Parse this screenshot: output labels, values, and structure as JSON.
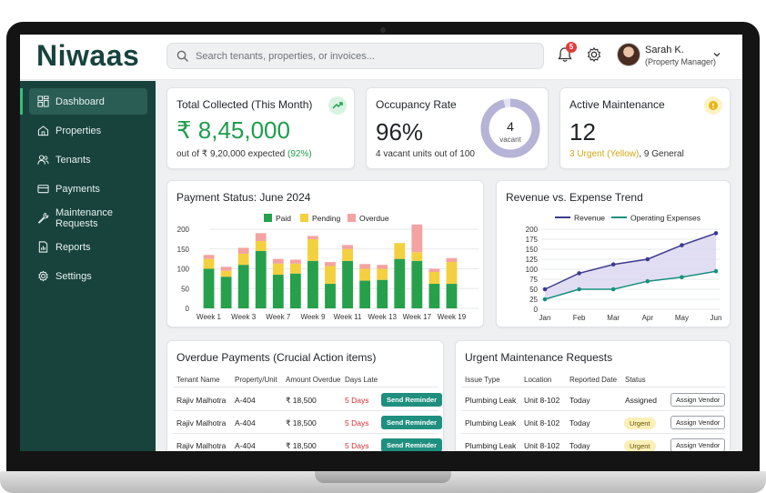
{
  "app": {
    "logo": "Niwaas",
    "search_placeholder": "Search tenants, properties, or invoices...",
    "notification_count": "5",
    "user_name": "Sarah K.",
    "user_role": "(Property Manager)"
  },
  "sidebar": {
    "items": [
      {
        "label": "Dashboard",
        "icon": "dashboard-icon",
        "active": true
      },
      {
        "label": "Properties",
        "icon": "home-icon"
      },
      {
        "label": "Tenants",
        "icon": "users-icon"
      },
      {
        "label": "Payments",
        "icon": "credit-card-icon"
      },
      {
        "label": "Maintenance Requests",
        "icon": "wrench-icon"
      },
      {
        "label": "Reports",
        "icon": "report-icon"
      },
      {
        "label": "Settings",
        "icon": "gear-icon"
      }
    ]
  },
  "kpis": {
    "collected": {
      "title": "Total Collected (This Month)",
      "value": "₹ 8,45,000",
      "sub_prefix": "out of ₹ 9,20,000 expected ",
      "sub_pct": "(92%)"
    },
    "occupancy": {
      "title": "Occupancy Rate",
      "value": "96%",
      "sub": "4 vacant units out of 100",
      "ring_number": "4",
      "ring_label": "vacant",
      "ring_fraction": 0.96
    },
    "maintenance": {
      "title": "Active Maintenance",
      "value": "12",
      "sub_urgent": "3 Urgent (Yellow)",
      "sub_rest": ", 9 General"
    }
  },
  "colors": {
    "paid": "#27a04c",
    "pending": "#f4d03f",
    "overdue": "#f3a3a1",
    "revenue": "#3d3b8e",
    "expenses": "#17907f",
    "accent": "#18433d"
  },
  "payment_chart": {
    "title": "Payment Status: June 2024",
    "legend": [
      "Paid",
      "Pending",
      "Overdue"
    ]
  },
  "trend_chart": {
    "title": "Revenue vs. Expense Trend",
    "legend": [
      "Revenue",
      "Operating Expenses"
    ]
  },
  "chart_data": [
    {
      "type": "bar",
      "stacked": true,
      "title": "Payment Status: June 2024",
      "ylim": [
        0,
        200
      ],
      "yticks": [
        "0",
        "50",
        "100",
        "150",
        "200"
      ],
      "x_tick_labels": [
        "Week 1",
        "Week 3",
        "Week 7",
        "Week 9",
        "Week 11",
        "Week 13",
        "Week 17",
        "Week 19"
      ],
      "bar_count": 15,
      "series": [
        {
          "name": "Paid",
          "values": [
            100,
            80,
            110,
            145,
            85,
            88,
            120,
            62,
            120,
            70,
            72,
            125,
            120,
            62,
            62
          ]
        },
        {
          "name": "Pending",
          "values": [
            25,
            15,
            28,
            25,
            28,
            25,
            55,
            45,
            30,
            30,
            28,
            40,
            22,
            30,
            55
          ]
        },
        {
          "name": "Overdue",
          "values": [
            10,
            10,
            15,
            20,
            12,
            10,
            8,
            10,
            10,
            12,
            10,
            0,
            70,
            8,
            10
          ]
        }
      ],
      "grid": true,
      "legend": "top"
    },
    {
      "type": "area",
      "title": "Revenue vs. Expense Trend",
      "categories": [
        "Jan",
        "Feb",
        "Mar",
        "Apr",
        "May",
        "Jun"
      ],
      "ylim": [
        0,
        200
      ],
      "yticks": [
        "0",
        "25",
        "50",
        "75",
        "100",
        "125",
        "150",
        "175",
        "200"
      ],
      "series": [
        {
          "name": "Revenue",
          "values": [
            50,
            90,
            112,
            125,
            160,
            190
          ]
        },
        {
          "name": "Operating Expenses",
          "values": [
            25,
            50,
            50,
            70,
            80,
            95
          ]
        }
      ],
      "grid": true,
      "legend": "top"
    }
  ],
  "overdue": {
    "title_main": "Overdue Payments",
    "title_sub": "(Crucial Action items)",
    "columns": [
      "Tenant Name",
      "Property/Unit",
      "Amount Overdue",
      "Days Late"
    ],
    "rows": [
      {
        "tenant": "Rajiv Malhotra",
        "unit": "A-404",
        "amount": "₹ 18,500",
        "days": "5 Days",
        "action": "Send Reminder"
      },
      {
        "tenant": "Rajiv Malhotra",
        "unit": "A-404",
        "amount": "₹ 18,500",
        "days": "5 Days",
        "action": "Send Reminder"
      },
      {
        "tenant": "Rajiv Malhotra",
        "unit": "A-404",
        "amount": "₹ 18,500",
        "days": "5 Days",
        "action": "Send Reminder"
      }
    ]
  },
  "urgent": {
    "title": "Urgent Maintenance Requests",
    "columns": [
      "Issue Type",
      "Location",
      "Reported Date",
      "Status"
    ],
    "rows": [
      {
        "issue": "Plumbing Leak",
        "location": "Unit 8-102",
        "date": "Today",
        "status": "Assigned",
        "action": "Assign Vendor"
      },
      {
        "issue": "Plumbing Leak",
        "location": "Unit 8-102",
        "date": "Today",
        "status": "Urgent",
        "action": "Assign Vendor"
      },
      {
        "issue": "Plumbing Leak",
        "location": "Unit 8-102",
        "date": "Today",
        "status": "Urgent",
        "action": "Assign Vendor"
      }
    ]
  }
}
